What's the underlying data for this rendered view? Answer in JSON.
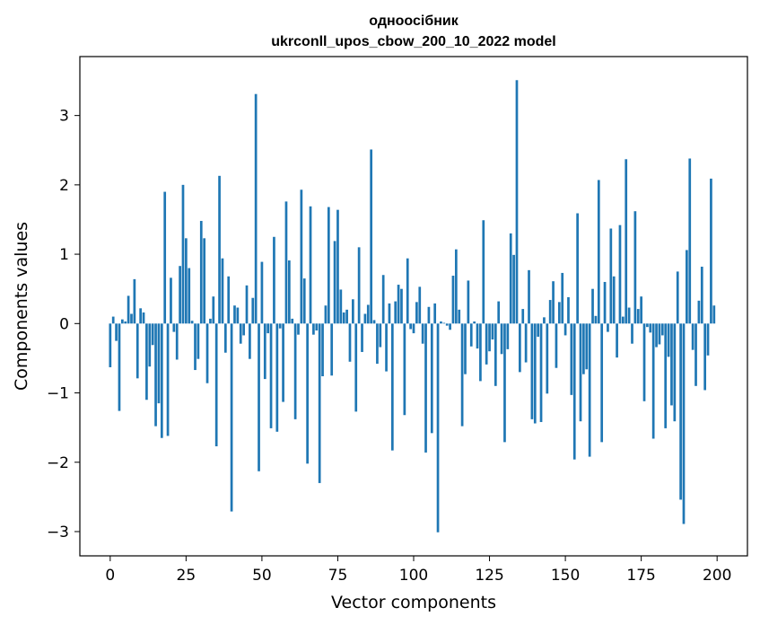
{
  "chart_data": {
    "type": "bar",
    "title": "одноосібник",
    "subtitle": "ukrconll_upos_cbow_200_10_2022 model",
    "xlabel": "Vector components",
    "ylabel": "Components values",
    "xlim": [
      -10,
      210
    ],
    "ylim": [
      -3.35,
      3.85
    ],
    "xticks": [
      0,
      25,
      50,
      75,
      100,
      125,
      150,
      175,
      200
    ],
    "yticks": [
      -3,
      -2,
      -1,
      0,
      1,
      2,
      3
    ],
    "bar_color": "#1f77b4",
    "values": [
      -0.63,
      0.1,
      -0.25,
      -1.26,
      0.06,
      0.03,
      0.4,
      0.14,
      0.64,
      -0.79,
      0.22,
      0.16,
      -1.1,
      -0.62,
      -0.31,
      -1.48,
      -1.15,
      -1.65,
      1.9,
      -1.62,
      0.66,
      -0.12,
      -0.52,
      0.83,
      2.0,
      1.23,
      0.8,
      0.04,
      -0.67,
      -0.51,
      1.48,
      1.23,
      -0.86,
      0.07,
      0.39,
      -1.77,
      2.13,
      0.94,
      -0.42,
      0.68,
      -2.71,
      0.26,
      0.23,
      -0.29,
      -0.17,
      0.55,
      -0.51,
      0.37,
      3.31,
      -2.13,
      0.89,
      -0.8,
      -0.14,
      -1.51,
      1.25,
      -1.56,
      -0.07,
      -1.13,
      1.76,
      0.91,
      0.07,
      -1.38,
      -0.16,
      1.93,
      0.65,
      -2.02,
      1.69,
      -0.16,
      -0.1,
      -2.3,
      -0.76,
      0.26,
      1.68,
      -0.75,
      1.19,
      1.64,
      0.49,
      0.16,
      0.2,
      -0.55,
      0.35,
      -1.27,
      1.1,
      -0.41,
      0.14,
      0.27,
      2.51,
      0.05,
      -0.58,
      -0.34,
      0.7,
      -0.69,
      0.29,
      -1.83,
      0.32,
      0.56,
      0.5,
      -1.32,
      0.94,
      -0.08,
      -0.14,
      0.31,
      0.53,
      -0.29,
      -1.86,
      0.24,
      -1.58,
      0.29,
      -3.01,
      0.03,
      0.01,
      -0.03,
      -0.09,
      0.69,
      1.07,
      0.2,
      -1.48,
      -0.73,
      0.62,
      -0.33,
      0.03,
      -0.36,
      -0.83,
      1.49,
      -0.59,
      -0.4,
      -0.23,
      -0.9,
      0.32,
      -0.44,
      -1.71,
      -0.37,
      1.3,
      0.99,
      3.51,
      -0.7,
      0.21,
      -0.56,
      0.77,
      -1.38,
      -1.44,
      -0.19,
      -1.42,
      0.09,
      -1.01,
      0.34,
      0.61,
      -0.64,
      0.31,
      0.73,
      -0.17,
      0.38,
      -1.03,
      -1.96,
      1.59,
      -1.41,
      -0.73,
      -0.66,
      -1.92,
      0.5,
      0.11,
      2.07,
      -1.71,
      0.6,
      -0.12,
      1.37,
      0.68,
      -0.49,
      1.42,
      0.1,
      2.37,
      0.23,
      -0.29,
      1.62,
      0.21,
      0.39,
      -1.12,
      -0.05,
      -0.13,
      -1.66,
      -0.34,
      -0.3,
      -0.17,
      -1.51,
      -0.48,
      -1.18,
      -1.41,
      0.75,
      -2.54,
      -2.89,
      1.06,
      2.38,
      -0.38,
      -0.9,
      0.33,
      0.82,
      -0.96,
      -0.46,
      2.09,
      0.26
    ]
  }
}
